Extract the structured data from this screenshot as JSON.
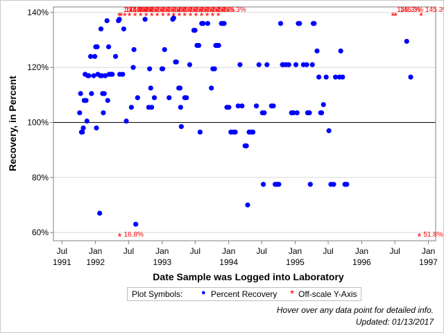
{
  "chart_data": {
    "type": "scatter",
    "title": "",
    "xlabel": "Date Sample was Logged into Laboratory",
    "ylabel": "Recovery, in Percent",
    "ylim": [
      57,
      142
    ],
    "xlim": [
      "1991-05-15",
      "1997-02-10"
    ],
    "reference_line_y": 100,
    "grid": "horizontal",
    "x_ticks": [
      {
        "date": "1991-07-01",
        "label": "Jul",
        "year": "1991"
      },
      {
        "date": "1992-01-01",
        "label": "Jan",
        "year": "1992"
      },
      {
        "date": "1992-07-01",
        "label": "Jul",
        "year": ""
      },
      {
        "date": "1993-01-01",
        "label": "Jan",
        "year": "1993"
      },
      {
        "date": "1993-07-01",
        "label": "Jul",
        "year": ""
      },
      {
        "date": "1994-01-01",
        "label": "Jan",
        "year": "1994"
      },
      {
        "date": "1994-07-01",
        "label": "Jul",
        "year": ""
      },
      {
        "date": "1995-01-01",
        "label": "Jan",
        "year": "1995"
      },
      {
        "date": "1995-07-01",
        "label": "Jul",
        "year": ""
      },
      {
        "date": "1996-01-01",
        "label": "Jan",
        "year": "1996"
      },
      {
        "date": "1996-07-01",
        "label": "Jul",
        "year": ""
      },
      {
        "date": "1997-01-01",
        "label": "Jan",
        "year": "1997"
      }
    ],
    "y_ticks": [
      {
        "value": 60,
        "label": "60%"
      },
      {
        "value": 80,
        "label": "80%"
      },
      {
        "value": 100,
        "label": "100%"
      },
      {
        "value": 120,
        "label": "120%"
      },
      {
        "value": 140,
        "label": "140%"
      }
    ],
    "series": [
      {
        "name": "Percent Recovery",
        "marker": "circle",
        "color": "#0000ff",
        "points": [
          [
            "1991-10-06",
            103.5
          ],
          [
            "1991-10-11",
            110.5
          ],
          [
            "1991-10-16",
            96.5
          ],
          [
            "1991-10-21",
            96.5
          ],
          [
            "1991-10-26",
            98
          ],
          [
            "1991-10-31",
            108
          ],
          [
            "1991-11-05",
            117.5
          ],
          [
            "1991-11-10",
            108
          ],
          [
            "1991-11-15",
            100.5
          ],
          [
            "1991-11-20",
            117
          ],
          [
            "1991-11-25",
            117
          ],
          [
            "1991-12-05",
            124
          ],
          [
            "1991-12-10",
            110.5
          ],
          [
            "1991-12-22",
            117
          ],
          [
            "1991-12-28",
            124
          ],
          [
            "1992-01-02",
            127.5
          ],
          [
            "1992-01-06",
            98
          ],
          [
            "1992-01-10",
            127.5
          ],
          [
            "1992-01-14",
            117.5
          ],
          [
            "1992-01-24",
            67
          ],
          [
            "1992-01-28",
            117
          ],
          [
            "1992-01-31",
            134
          ],
          [
            "1992-02-05",
            117
          ],
          [
            "1992-02-09",
            110.5
          ],
          [
            "1992-02-13",
            103.5
          ],
          [
            "1992-02-18",
            110.5
          ],
          [
            "1992-02-24",
            117
          ],
          [
            "1992-03-04",
            137
          ],
          [
            "1992-03-08",
            108
          ],
          [
            "1992-03-13",
            127.5
          ],
          [
            "1992-03-16",
            117.5
          ],
          [
            "1992-03-27",
            117.5
          ],
          [
            "1992-04-02",
            117.5
          ],
          [
            "1992-04-20",
            124
          ],
          [
            "1992-05-06",
            137
          ],
          [
            "1992-05-11",
            137.5
          ],
          [
            "1992-05-13",
            117.5
          ],
          [
            "1992-05-29",
            117.5
          ],
          [
            "1992-06-04",
            134
          ],
          [
            "1992-06-18",
            100.5
          ],
          [
            "1992-07-16",
            105.5
          ],
          [
            "1992-07-26",
            120
          ],
          [
            "1992-07-30",
            126.5
          ],
          [
            "1992-08-09",
            63
          ],
          [
            "1992-08-19",
            109
          ],
          [
            "1992-09-29",
            137.5
          ],
          [
            "1992-10-19",
            105.5
          ],
          [
            "1992-10-24",
            119.5
          ],
          [
            "1992-10-30",
            112.5
          ],
          [
            "1992-11-04",
            105.5
          ],
          [
            "1992-11-19",
            109
          ],
          [
            "1992-12-31",
            119.5
          ],
          [
            "1993-01-04",
            119.5
          ],
          [
            "1993-01-14",
            126.5
          ],
          [
            "1993-02-08",
            109
          ],
          [
            "1993-02-28",
            137.5
          ],
          [
            "1993-03-05",
            138
          ],
          [
            "1993-03-15",
            122
          ],
          [
            "1993-03-20",
            122
          ],
          [
            "1993-04-02",
            112.5
          ],
          [
            "1993-04-09",
            112.5
          ],
          [
            "1993-04-12",
            105.5
          ],
          [
            "1993-04-16",
            98.5
          ],
          [
            "1993-05-05",
            109
          ],
          [
            "1993-05-14",
            109
          ],
          [
            "1993-06-01",
            121
          ],
          [
            "1993-06-24",
            133.5
          ],
          [
            "1993-06-30",
            133.5
          ],
          [
            "1993-07-11",
            128
          ],
          [
            "1993-07-21",
            128
          ],
          [
            "1993-07-28",
            96.5
          ],
          [
            "1993-08-06",
            136
          ],
          [
            "1993-08-14",
            136
          ],
          [
            "1993-09-08",
            136
          ],
          [
            "1993-09-28",
            112.5
          ],
          [
            "1993-10-06",
            119.5
          ],
          [
            "1993-10-15",
            119.5
          ],
          [
            "1993-10-22",
            128
          ],
          [
            "1993-10-28",
            128
          ],
          [
            "1993-11-07",
            128
          ],
          [
            "1993-11-22",
            136
          ],
          [
            "1993-12-02",
            136
          ],
          [
            "1993-12-07",
            136
          ],
          [
            "1993-12-22",
            105.5
          ],
          [
            "1994-01-02",
            105.5
          ],
          [
            "1994-01-13",
            96.5
          ],
          [
            "1994-01-28",
            96.5
          ],
          [
            "1994-02-06",
            96.5
          ],
          [
            "1994-02-22",
            106
          ],
          [
            "1994-03-04",
            121
          ],
          [
            "1994-03-15",
            106
          ],
          [
            "1994-04-01",
            91.5
          ],
          [
            "1994-04-08",
            91.5
          ],
          [
            "1994-04-15",
            70
          ],
          [
            "1994-04-23",
            96.5
          ],
          [
            "1994-05-06",
            96.5
          ],
          [
            "1994-05-14",
            96.5
          ],
          [
            "1994-06-02",
            106
          ],
          [
            "1994-06-16",
            121
          ],
          [
            "1994-07-05",
            103.5
          ],
          [
            "1994-07-10",
            77.5
          ],
          [
            "1994-07-15",
            103.5
          ],
          [
            "1994-07-30",
            121
          ],
          [
            "1994-08-24",
            106
          ],
          [
            "1994-09-03",
            106
          ],
          [
            "1994-09-13",
            77.5
          ],
          [
            "1994-09-23",
            77.5
          ],
          [
            "1994-10-03",
            77.5
          ],
          [
            "1994-10-13",
            136
          ],
          [
            "1994-10-23",
            121
          ],
          [
            "1994-10-28",
            121
          ],
          [
            "1994-11-12",
            121
          ],
          [
            "1994-11-27",
            121
          ],
          [
            "1994-12-12",
            103.5
          ],
          [
            "1994-12-22",
            103.5
          ],
          [
            "1995-01-05",
            121
          ],
          [
            "1995-01-11",
            103.5
          ],
          [
            "1995-01-18",
            136
          ],
          [
            "1995-01-25",
            136
          ],
          [
            "1995-02-15",
            121
          ],
          [
            "1995-03-05",
            121
          ],
          [
            "1995-03-10",
            103.5
          ],
          [
            "1995-03-20",
            103.5
          ],
          [
            "1995-03-25",
            77.5
          ],
          [
            "1995-04-05",
            121
          ],
          [
            "1995-04-10",
            136
          ],
          [
            "1995-04-15",
            136
          ],
          [
            "1995-05-01",
            126
          ],
          [
            "1995-05-11",
            116.5
          ],
          [
            "1995-05-21",
            103.5
          ],
          [
            "1995-05-26",
            103.5
          ],
          [
            "1995-06-05",
            106.5
          ],
          [
            "1995-06-20",
            116.5
          ],
          [
            "1995-07-05",
            97
          ],
          [
            "1995-07-16",
            77.5
          ],
          [
            "1995-07-31",
            77.5
          ],
          [
            "1995-08-10",
            116.5
          ],
          [
            "1995-09-01",
            116.5
          ],
          [
            "1995-09-08",
            126
          ],
          [
            "1995-09-18",
            116.5
          ],
          [
            "1995-10-01",
            77.5
          ],
          [
            "1995-10-11",
            77.5
          ],
          [
            "1996-09-04",
            129.5
          ],
          [
            "1996-09-26",
            116.5
          ]
        ]
      },
      {
        "name": "Off-scale Y-Axis",
        "marker": "asterisk",
        "color": "#ff0000",
        "points": [
          [
            "1992-05-13",
            "16.8%",
            "bottom"
          ],
          [
            "1996-11-12",
            "51.8%",
            "bottom"
          ],
          [
            "1992-05-10",
            "150.8%",
            "top"
          ],
          [
            "1992-05-20",
            "145%",
            "top"
          ],
          [
            "1992-06-10",
            "145.5%",
            "top"
          ],
          [
            "1992-07-05",
            "145%",
            "top"
          ],
          [
            "1992-08-05",
            "145%",
            "top"
          ],
          [
            "1992-09-05",
            "145%",
            "top"
          ],
          [
            "1992-10-05",
            "145%",
            "top"
          ],
          [
            "1992-11-05",
            "145%",
            "top"
          ],
          [
            "1992-12-05",
            "145%",
            "top"
          ],
          [
            "1993-01-05",
            "145%",
            "top"
          ],
          [
            "1993-02-05",
            "145%",
            "top"
          ],
          [
            "1993-03-05",
            "145%",
            "top"
          ],
          [
            "1993-04-05",
            "145%",
            "top"
          ],
          [
            "1993-05-05",
            "145%",
            "top"
          ],
          [
            "1993-06-05",
            "145%",
            "top"
          ],
          [
            "1993-07-05",
            "145%",
            "top"
          ],
          [
            "1993-08-05",
            "145%",
            "top"
          ],
          [
            "1993-09-05",
            "145%",
            "top"
          ],
          [
            "1993-10-05",
            "145%",
            "top"
          ],
          [
            "1993-11-05",
            "145.3%",
            "top"
          ],
          [
            "1996-06-20",
            "145.3%",
            "top"
          ],
          [
            "1996-07-05",
            "145.3%",
            "top"
          ],
          [
            "1996-11-22",
            "145.3%",
            "top"
          ]
        ]
      }
    ]
  },
  "legend": {
    "title": "Plot Symbols:",
    "items": [
      {
        "label": "Percent Recovery",
        "marker": "circle",
        "color": "#0000ff"
      },
      {
        "label": "Off-scale Y-Axis",
        "marker": "asterisk",
        "color": "#ff0000"
      }
    ]
  },
  "footnote": {
    "line1": "Hover over any data point for detailed info.",
    "line2": "Updated: 01/13/2017"
  },
  "colors": {
    "point": "#0000ff",
    "offscale": "#ff0000",
    "grid": "#d9d9d9",
    "axis": "#7f7f7f",
    "reference": "#000000"
  }
}
